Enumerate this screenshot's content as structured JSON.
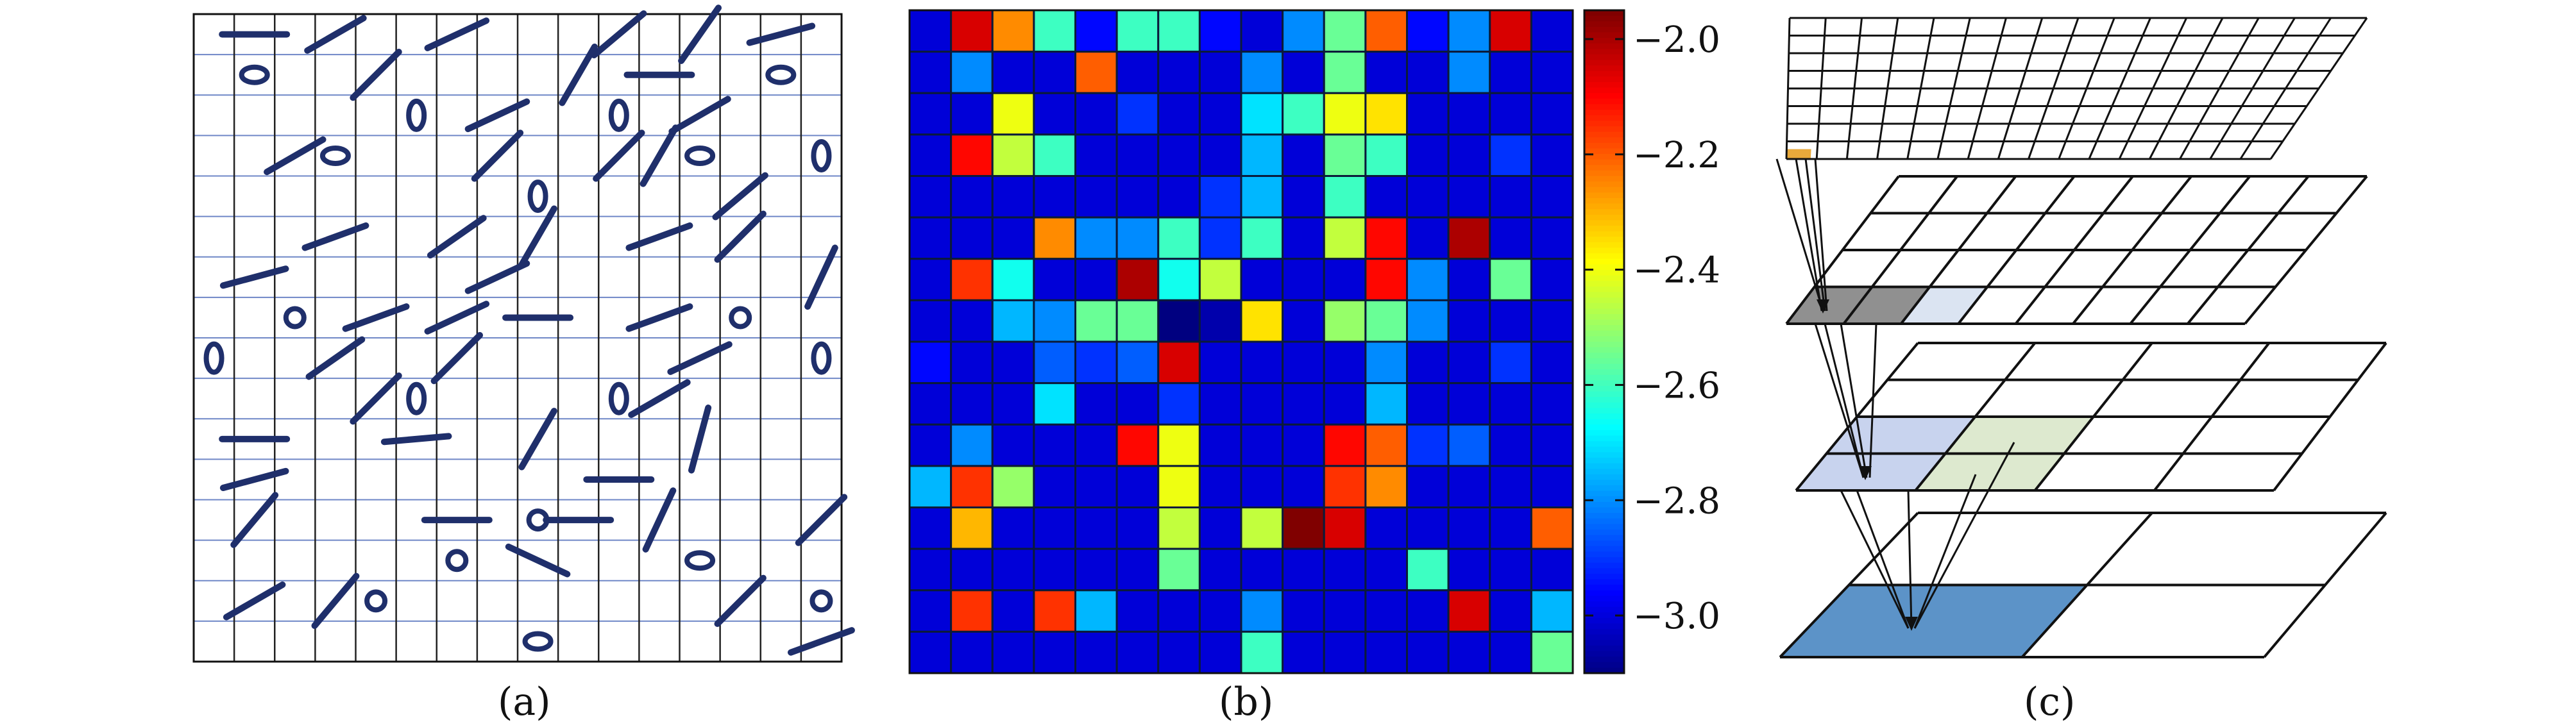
{
  "panels": {
    "a": {
      "caption": "(a)"
    },
    "b": {
      "caption": "(b)"
    },
    "c": {
      "caption": "(c)"
    }
  },
  "colors": {
    "ink": "#1f2f6b",
    "grid_blue": "#6f87c7",
    "layer_fill_dark": "#909090",
    "layer_fill_blue": "#c8d3ee",
    "layer_fill_green": "#dde9cf",
    "layer_fill_base": "#5c93c8"
  },
  "chart_data": [
    {
      "type": "heatmap",
      "title": "",
      "rows": 16,
      "cols": 16,
      "colorbar": {
        "min": -3.1,
        "max": -1.95,
        "ticks": [
          -2.0,
          -2.2,
          -2.4,
          -2.6,
          -2.8,
          -3.0
        ],
        "tick_labels": [
          "−2.0",
          "−2.2",
          "−2.4",
          "−2.6",
          "−2.8",
          "−3.0"
        ],
        "colormap": "jet"
      },
      "cells": [
        [
          -3.0,
          -2.05,
          -2.25,
          -2.6,
          -2.95,
          -2.6,
          -2.6,
          -2.95,
          -3.0,
          -2.8,
          -2.55,
          -2.2,
          -2.95,
          -2.8,
          -2.05,
          -3.0
        ],
        [
          -3.0,
          -2.8,
          -3.0,
          -3.0,
          -2.2,
          -3.0,
          -3.0,
          -3.0,
          -2.8,
          -3.0,
          -2.55,
          -3.0,
          -3.0,
          -2.8,
          -3.0,
          -3.0
        ],
        [
          -3.0,
          -3.0,
          -2.4,
          -3.0,
          -3.0,
          -2.9,
          -3.0,
          -3.0,
          -2.7,
          -2.6,
          -2.4,
          -2.35,
          -3.0,
          -3.0,
          -3.0,
          -3.0
        ],
        [
          -3.0,
          -2.1,
          -2.45,
          -2.6,
          -3.0,
          -3.0,
          -3.0,
          -3.0,
          -2.75,
          -3.0,
          -2.55,
          -2.6,
          -3.0,
          -3.0,
          -2.9,
          -3.0
        ],
        [
          -3.0,
          -3.0,
          -3.0,
          -3.0,
          -3.0,
          -3.0,
          -3.0,
          -2.9,
          -2.75,
          -3.0,
          -2.6,
          -3.0,
          -3.0,
          -3.0,
          -3.0,
          -3.0
        ],
        [
          -3.0,
          -3.0,
          -3.0,
          -2.25,
          -2.8,
          -2.8,
          -2.6,
          -2.9,
          -2.6,
          -3.0,
          -2.45,
          -2.1,
          -3.0,
          -2.0,
          -3.0,
          -3.0
        ],
        [
          -3.0,
          -2.15,
          -2.65,
          -3.0,
          -3.0,
          -2.0,
          -2.65,
          -2.45,
          -3.0,
          -3.0,
          -3.0,
          -2.1,
          -2.8,
          -3.0,
          -2.55,
          -3.0
        ],
        [
          -3.0,
          -3.0,
          -2.75,
          -2.8,
          -2.55,
          -2.55,
          -3.1,
          -3.05,
          -2.35,
          -3.0,
          -2.5,
          -2.55,
          -2.8,
          -3.0,
          -3.0,
          -3.0
        ],
        [
          -2.95,
          -3.0,
          -3.0,
          -2.85,
          -2.9,
          -2.85,
          -2.05,
          -3.0,
          -3.0,
          -3.0,
          -3.0,
          -2.8,
          -3.0,
          -3.0,
          -2.9,
          -3.0
        ],
        [
          -3.0,
          -3.0,
          -3.0,
          -2.7,
          -3.0,
          -3.0,
          -2.9,
          -3.0,
          -3.0,
          -3.0,
          -3.0,
          -2.75,
          -3.0,
          -3.0,
          -3.0,
          -3.0
        ],
        [
          -3.0,
          -2.8,
          -3.0,
          -3.0,
          -3.0,
          -2.1,
          -2.4,
          -3.0,
          -3.0,
          -3.0,
          -2.1,
          -2.2,
          -2.9,
          -2.85,
          -3.0,
          -3.0
        ],
        [
          -2.75,
          -2.15,
          -2.5,
          -3.0,
          -3.0,
          -3.0,
          -2.4,
          -3.0,
          -3.0,
          -3.0,
          -2.15,
          -2.25,
          -3.0,
          -3.0,
          -3.0,
          -3.0
        ],
        [
          -3.0,
          -2.3,
          -3.0,
          -3.0,
          -3.0,
          -3.0,
          -2.45,
          -3.0,
          -2.45,
          -1.95,
          -2.05,
          -3.0,
          -3.0,
          -3.0,
          -3.0,
          -2.2
        ],
        [
          -3.0,
          -3.0,
          -3.0,
          -3.0,
          -3.0,
          -3.0,
          -2.55,
          -3.0,
          -3.0,
          -3.0,
          -3.0,
          -3.0,
          -2.6,
          -3.0,
          -3.0,
          -3.0
        ],
        [
          -3.0,
          -2.15,
          -3.0,
          -2.15,
          -2.75,
          -3.0,
          -3.0,
          -3.0,
          -2.8,
          -3.0,
          -3.0,
          -3.0,
          -3.0,
          -2.05,
          -3.0,
          -2.75
        ],
        [
          -3.0,
          -3.0,
          -3.0,
          -3.0,
          -3.0,
          -3.0,
          -3.0,
          -3.0,
          -2.6,
          -3.0,
          -3.0,
          -3.0,
          -3.0,
          -3.0,
          -3.0,
          -2.55
        ]
      ]
    }
  ],
  "panel_a": {
    "columns": 16,
    "rows": 16,
    "items": [
      {
        "kind": "line",
        "r": 0,
        "c": 1,
        "angle": 0
      },
      {
        "kind": "line",
        "r": 0,
        "c": 3,
        "angle": -30
      },
      {
        "kind": "line",
        "r": 0,
        "c": 6,
        "angle": -25
      },
      {
        "kind": "line",
        "r": 0,
        "c": 10,
        "angle": -40
      },
      {
        "kind": "line",
        "r": 0,
        "c": 12,
        "angle": -55
      },
      {
        "kind": "line",
        "r": 0,
        "c": 14,
        "angle": -15
      },
      {
        "kind": "ellipse",
        "r": 1,
        "c": 1,
        "shape": "h"
      },
      {
        "kind": "line",
        "r": 1,
        "c": 4,
        "angle": -45
      },
      {
        "kind": "line",
        "r": 1,
        "c": 9,
        "angle": -60
      },
      {
        "kind": "line",
        "r": 1,
        "c": 11,
        "angle": 0
      },
      {
        "kind": "ellipse",
        "r": 1,
        "c": 14,
        "shape": "h"
      },
      {
        "kind": "ellipse",
        "r": 2,
        "c": 5,
        "shape": "v"
      },
      {
        "kind": "line",
        "r": 2,
        "c": 7,
        "angle": -25
      },
      {
        "kind": "ellipse",
        "r": 2,
        "c": 10,
        "shape": "v"
      },
      {
        "kind": "line",
        "r": 2,
        "c": 12,
        "angle": -30
      },
      {
        "kind": "line",
        "r": 3,
        "c": 2,
        "angle": -30
      },
      {
        "kind": "ellipse",
        "r": 3,
        "c": 3,
        "shape": "h"
      },
      {
        "kind": "line",
        "r": 3,
        "c": 7,
        "angle": -45
      },
      {
        "kind": "line",
        "r": 3,
        "c": 10,
        "angle": -45
      },
      {
        "kind": "line",
        "r": 3,
        "c": 11,
        "angle": -60
      },
      {
        "kind": "ellipse",
        "r": 3,
        "c": 12,
        "shape": "h"
      },
      {
        "kind": "ellipse",
        "r": 3,
        "c": 15,
        "shape": "v"
      },
      {
        "kind": "ellipse",
        "r": 4,
        "c": 8,
        "shape": "v"
      },
      {
        "kind": "line",
        "r": 4,
        "c": 13,
        "angle": -40
      },
      {
        "kind": "line",
        "r": 5,
        "c": 3,
        "angle": -20
      },
      {
        "kind": "line",
        "r": 5,
        "c": 6,
        "angle": -35
      },
      {
        "kind": "line",
        "r": 5,
        "c": 8,
        "angle": -60
      },
      {
        "kind": "line",
        "r": 5,
        "c": 11,
        "angle": -20
      },
      {
        "kind": "line",
        "r": 5,
        "c": 13,
        "angle": -45
      },
      {
        "kind": "line",
        "r": 6,
        "c": 1,
        "angle": -15
      },
      {
        "kind": "line",
        "r": 6,
        "c": 7,
        "angle": -25
      },
      {
        "kind": "line",
        "r": 6,
        "c": 15,
        "angle": -65
      },
      {
        "kind": "ellipse",
        "r": 7,
        "c": 2,
        "shape": "o"
      },
      {
        "kind": "line",
        "r": 7,
        "c": 4,
        "angle": -20
      },
      {
        "kind": "line",
        "r": 7,
        "c": 6,
        "angle": -25
      },
      {
        "kind": "line",
        "r": 7,
        "c": 8,
        "angle": 0
      },
      {
        "kind": "line",
        "r": 7,
        "c": 11,
        "angle": -20
      },
      {
        "kind": "ellipse",
        "r": 7,
        "c": 13,
        "shape": "o"
      },
      {
        "kind": "ellipse",
        "r": 8,
        "c": 0,
        "shape": "v"
      },
      {
        "kind": "line",
        "r": 8,
        "c": 3,
        "angle": -35
      },
      {
        "kind": "line",
        "r": 8,
        "c": 6,
        "angle": -45
      },
      {
        "kind": "line",
        "r": 8,
        "c": 12,
        "angle": -25
      },
      {
        "kind": "ellipse",
        "r": 8,
        "c": 15,
        "shape": "v"
      },
      {
        "kind": "line",
        "r": 9,
        "c": 4,
        "angle": -45
      },
      {
        "kind": "ellipse",
        "r": 9,
        "c": 5,
        "shape": "v"
      },
      {
        "kind": "ellipse",
        "r": 9,
        "c": 10,
        "shape": "v"
      },
      {
        "kind": "line",
        "r": 9,
        "c": 11,
        "angle": -30
      },
      {
        "kind": "line",
        "r": 10,
        "c": 1,
        "angle": 0
      },
      {
        "kind": "line",
        "r": 10,
        "c": 5,
        "angle": -5
      },
      {
        "kind": "line",
        "r": 10,
        "c": 8,
        "angle": -60
      },
      {
        "kind": "line",
        "r": 10,
        "c": 12,
        "angle": -75
      },
      {
        "kind": "line",
        "r": 11,
        "c": 1,
        "angle": -15
      },
      {
        "kind": "line",
        "r": 11,
        "c": 10,
        "angle": 0
      },
      {
        "kind": "line",
        "r": 12,
        "c": 1,
        "angle": -50
      },
      {
        "kind": "line",
        "r": 12,
        "c": 6,
        "angle": 0
      },
      {
        "kind": "ellipse",
        "r": 12,
        "c": 8,
        "shape": "o"
      },
      {
        "kind": "line",
        "r": 12,
        "c": 9,
        "angle": 0
      },
      {
        "kind": "line",
        "r": 12,
        "c": 11,
        "angle": -65
      },
      {
        "kind": "line",
        "r": 12,
        "c": 15,
        "angle": -45
      },
      {
        "kind": "ellipse",
        "r": 13,
        "c": 6,
        "shape": "o"
      },
      {
        "kind": "line",
        "r": 13,
        "c": 8,
        "angle": 25
      },
      {
        "kind": "ellipse",
        "r": 13,
        "c": 12,
        "shape": "h"
      },
      {
        "kind": "line",
        "r": 14,
        "c": 1,
        "angle": -30
      },
      {
        "kind": "line",
        "r": 14,
        "c": 3,
        "angle": -50
      },
      {
        "kind": "ellipse",
        "r": 14,
        "c": 4,
        "shape": "o"
      },
      {
        "kind": "line",
        "r": 14,
        "c": 13,
        "angle": -45
      },
      {
        "kind": "ellipse",
        "r": 14,
        "c": 15,
        "shape": "o"
      },
      {
        "kind": "ellipse",
        "r": 15,
        "c": 8,
        "shape": "h"
      },
      {
        "kind": "line",
        "r": 15,
        "c": 15,
        "angle": -20
      }
    ]
  },
  "panel_c": {
    "layers": [
      {
        "cols": 16,
        "rows": 8,
        "highlight": "#e8a93b"
      },
      {
        "cols": 8,
        "rows": 4,
        "highlight": "#909090"
      },
      {
        "cols": 4,
        "rows": 4,
        "highlight": "#c8d3ee"
      },
      {
        "cols": 2,
        "rows": 2,
        "highlight": "#5c93c8"
      }
    ]
  }
}
